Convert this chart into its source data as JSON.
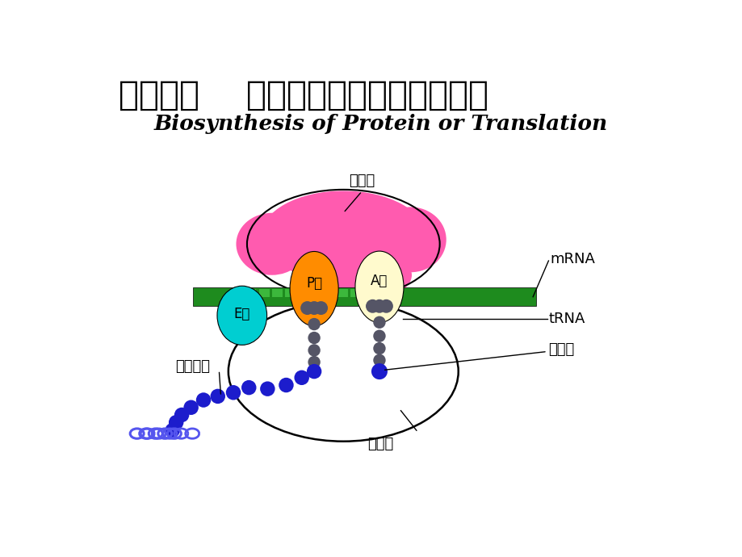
{
  "title_chinese": "第十三章    蛋白质的生物合成（翻译）",
  "title_english": "Biosynthesis of Protein or Translation",
  "bg_color": "#ffffff",
  "title_color": "#000000",
  "labels": {
    "xiao_ya_ji": "小亚基",
    "da_ya_ji": "大亚基",
    "mRNA": "mRNA",
    "tRNA": "tRNA",
    "amino_acid": "氨基酸",
    "nascent_chain": "新生肽链",
    "P_site": "P位",
    "A_site": "A位",
    "E_site": "E位"
  },
  "colors": {
    "small_subunit_pink": "#FF5BAF",
    "P_site_orange": "#FF8C00",
    "A_site_yellow": "#FFFACD",
    "E_site_cyan": "#00CED1",
    "mRNA_dark_green": "#1E8B1E",
    "mRNA_light_green": "#3CB83C",
    "tRNA_gray": "#555566",
    "amino_blue": "#1C1CCC",
    "helix_blue": "#5555EE",
    "large_subunit_outline": "#000000"
  }
}
